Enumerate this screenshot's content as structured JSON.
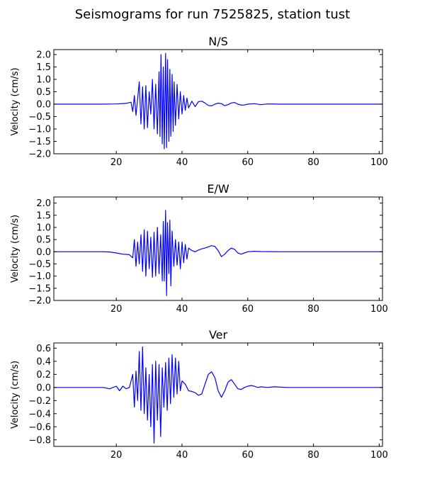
{
  "figure": {
    "title": "Seismograms for run 7525825, station tust"
  },
  "colors": {
    "trace": "#0000ff",
    "axes": "#000000",
    "background": "#ffffff"
  },
  "chart_data": [
    {
      "type": "line",
      "title": "N/S",
      "xlabel": "",
      "ylabel": "Velocity (cm/s)",
      "xlim": [
        1,
        101
      ],
      "ylim": [
        -2.0,
        2.2
      ],
      "xticks": [
        20,
        40,
        60,
        80,
        100
      ],
      "yticks": [
        -2.0,
        -1.5,
        -1.0,
        -0.5,
        0.0,
        0.5,
        1.0,
        1.5,
        2.0
      ],
      "ytick_labels": [
        "−2.0",
        "−1.5",
        "−1.0",
        "−0.5",
        "0.0",
        "0.5",
        "1.0",
        "1.5",
        "2.0"
      ],
      "series": [
        {
          "x": [
            1,
            15,
            20,
            23,
            24.5,
            25,
            25.5,
            26,
            26.5,
            27,
            27.5,
            28,
            28.5,
            29,
            29.5,
            30,
            30.5,
            31,
            31.5,
            32,
            32.5,
            33,
            33.3,
            33.6,
            34,
            34.3,
            34.6,
            35,
            35.3,
            35.6,
            36,
            36.3,
            36.6,
            37,
            37.3,
            37.6,
            38,
            38.5,
            39,
            39.5,
            40,
            40.5,
            41,
            41.5,
            42,
            43,
            44,
            45,
            46,
            47,
            48,
            49,
            50,
            51,
            52,
            53,
            54,
            55,
            56,
            57,
            58,
            59,
            60,
            62,
            64,
            66,
            70,
            80,
            101
          ],
          "y": [
            0,
            0,
            0.01,
            0.03,
            0.08,
            -0.3,
            0.35,
            -0.45,
            0.2,
            0.9,
            -0.8,
            0.7,
            -1.0,
            0.75,
            -0.95,
            0.5,
            -0.4,
            1.0,
            -1.0,
            0.8,
            -1.2,
            1.3,
            -1.3,
            2.0,
            -1.6,
            1.5,
            -1.8,
            2.05,
            -1.75,
            1.8,
            -1.5,
            1.4,
            -1.3,
            1.2,
            -1.1,
            0.9,
            -0.85,
            0.8,
            -0.6,
            0.5,
            -0.4,
            0.35,
            -0.25,
            0.25,
            -0.15,
            0.12,
            -0.1,
            0.1,
            0.12,
            0.05,
            -0.05,
            -0.07,
            0.0,
            0.04,
            0.02,
            -0.06,
            -0.02,
            0.05,
            0.07,
            0.0,
            -0.04,
            -0.03,
            0.0,
            0.02,
            -0.02,
            0.01,
            0,
            0,
            0
          ]
        }
      ]
    },
    {
      "type": "line",
      "title": "E/W",
      "xlabel": "",
      "ylabel": "Velocity (cm/s)",
      "xlim": [
        1,
        101
      ],
      "ylim": [
        -2.0,
        2.25
      ],
      "xticks": [
        20,
        40,
        60,
        80,
        100
      ],
      "yticks": [
        -2.0,
        -1.5,
        -1.0,
        -0.5,
        0.0,
        0.5,
        1.0,
        1.5,
        2.0
      ],
      "ytick_labels": [
        "−2.0",
        "−1.5",
        "−1.0",
        "−0.5",
        "0.0",
        "0.5",
        "1.0",
        "1.5",
        "2.0"
      ],
      "series": [
        {
          "x": [
            1,
            10,
            16,
            18,
            20,
            22,
            24,
            25,
            25.5,
            26,
            26.5,
            27,
            27.5,
            28,
            28.5,
            29,
            29.5,
            30,
            30.5,
            31,
            31.5,
            32,
            32.5,
            33,
            33.5,
            34,
            34.3,
            34.6,
            35,
            35.3,
            35.6,
            36,
            36.3,
            36.6,
            37,
            37.5,
            38,
            38.5,
            39,
            39.5,
            40,
            40.5,
            41,
            41.5,
            42,
            43,
            44,
            45,
            46,
            47,
            48,
            49,
            50,
            51,
            52,
            53,
            54,
            55,
            56,
            57,
            58,
            59,
            60,
            62,
            64,
            70,
            80,
            101
          ],
          "y": [
            0,
            0,
            0,
            -0.01,
            -0.05,
            -0.1,
            -0.12,
            -0.25,
            0.5,
            -0.6,
            0.4,
            -0.5,
            0.7,
            -0.8,
            0.9,
            -1.0,
            0.85,
            -0.7,
            0.6,
            -1.05,
            0.8,
            -1.0,
            1.0,
            -0.9,
            0.7,
            -1.2,
            1.25,
            -1.2,
            1.7,
            -1.8,
            1.2,
            -0.9,
            1.3,
            -1.4,
            0.85,
            -0.6,
            0.5,
            -0.55,
            0.4,
            -0.7,
            0.4,
            -0.45,
            0.3,
            -0.3,
            0.15,
            0.05,
            0.0,
            0.07,
            0.12,
            0.15,
            0.2,
            0.25,
            0.22,
            0.05,
            -0.2,
            -0.1,
            0.05,
            0.15,
            0.1,
            -0.05,
            -0.1,
            -0.05,
            0.0,
            0.02,
            0.01,
            0,
            0,
            0
          ]
        }
      ]
    },
    {
      "type": "line",
      "title": "Ver",
      "xlabel": "",
      "ylabel": "Velocity (cm/s)",
      "xlim": [
        1,
        101
      ],
      "ylim": [
        -0.9,
        0.68
      ],
      "xticks": [
        20,
        40,
        60,
        80,
        100
      ],
      "yticks": [
        -0.8,
        -0.6,
        -0.4,
        -0.2,
        0.0,
        0.2,
        0.4,
        0.6
      ],
      "ytick_labels": [
        "−0.8",
        "−0.6",
        "−0.4",
        "−0.2",
        "0.0",
        "0.2",
        "0.4",
        "0.6"
      ],
      "series": [
        {
          "x": [
            1,
            14,
            16,
            18,
            20,
            21,
            22,
            23,
            24,
            25,
            25.5,
            26,
            26.5,
            27,
            27.5,
            28,
            28.5,
            29,
            29.5,
            30,
            30.5,
            31,
            31.5,
            32,
            32.5,
            33,
            33.5,
            34,
            34.5,
            35,
            35.5,
            36,
            36.5,
            37,
            37.5,
            38,
            38.5,
            39,
            39.5,
            40,
            41,
            42,
            43,
            44,
            45,
            46,
            47,
            48,
            49,
            50,
            51,
            52,
            53,
            54,
            55,
            56,
            57,
            58,
            59,
            60,
            61,
            62,
            63,
            64,
            66,
            68,
            72,
            80,
            101
          ],
          "y": [
            0,
            0,
            0.0,
            -0.02,
            0.02,
            -0.05,
            0.02,
            -0.02,
            0.0,
            0.2,
            -0.3,
            0.25,
            -0.2,
            0.55,
            -0.35,
            0.62,
            -0.4,
            0.3,
            -0.5,
            0.2,
            -0.6,
            0.35,
            -0.85,
            0.4,
            -0.5,
            0.35,
            -0.75,
            0.3,
            -0.3,
            0.38,
            -0.35,
            0.45,
            -0.25,
            0.5,
            -0.15,
            0.45,
            -0.1,
            0.4,
            -0.05,
            0.1,
            0.05,
            -0.05,
            -0.06,
            -0.08,
            -0.12,
            -0.1,
            0.05,
            0.2,
            0.24,
            0.15,
            -0.05,
            -0.15,
            -0.05,
            0.08,
            0.12,
            0.05,
            -0.02,
            -0.03,
            0.0,
            0.02,
            0.03,
            0.02,
            0.0,
            0.01,
            0.0,
            0.01,
            0,
            0,
            0
          ]
        }
      ]
    }
  ]
}
